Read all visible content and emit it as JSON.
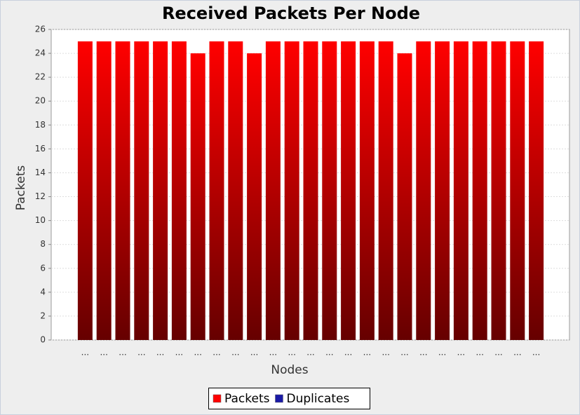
{
  "chart_data": {
    "type": "bar",
    "stacked": true,
    "title": "Received Packets Per Node",
    "x_label": "Nodes",
    "y_label": "Packets",
    "categories": [
      "...",
      "...",
      "...",
      "...",
      "...",
      "...",
      "...",
      "...",
      "...",
      "...",
      "...",
      "...",
      "...",
      "...",
      "...",
      "...",
      "...",
      "...",
      "...",
      "...",
      "...",
      "...",
      "...",
      "...",
      "..."
    ],
    "series": [
      {
        "name": "Packets",
        "color": "#ff0000",
        "values": [
          25,
          25,
          25,
          25,
          25,
          25,
          24,
          25,
          25,
          24,
          25,
          25,
          25,
          25,
          25,
          25,
          25,
          24,
          25,
          25,
          25,
          25,
          25,
          25,
          25
        ]
      },
      {
        "name": "Duplicates",
        "color": "#1a1aa6",
        "values": [
          0,
          0,
          0,
          0,
          0,
          0,
          0,
          0,
          0,
          0,
          0,
          0,
          0,
          0,
          0,
          0,
          0,
          0,
          0,
          0,
          0,
          0,
          0,
          0,
          0
        ]
      }
    ],
    "ylim": [
      0,
      26
    ],
    "yticks": [
      0,
      2,
      4,
      6,
      8,
      10,
      12,
      14,
      16,
      18,
      20,
      22,
      24,
      26
    ],
    "grid": true
  }
}
